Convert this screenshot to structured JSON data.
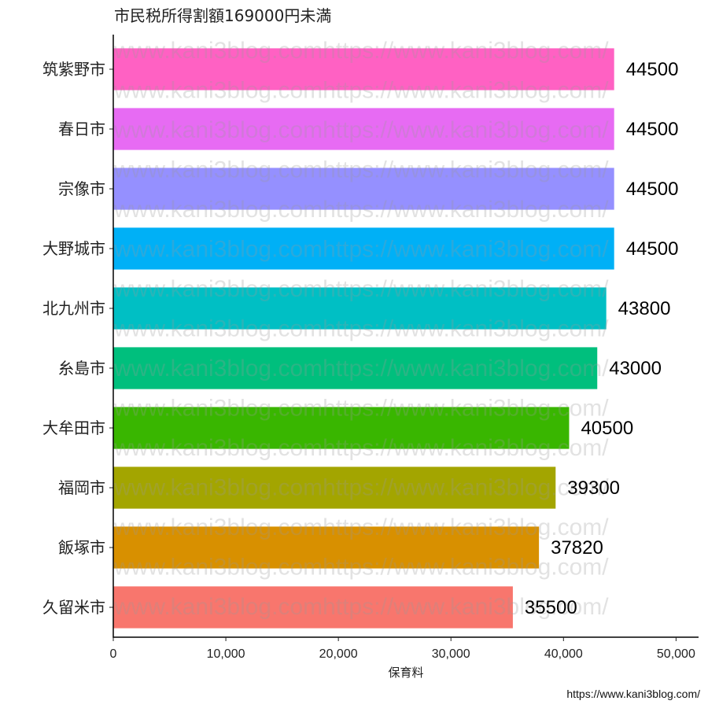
{
  "title": "市民税所得割額169000円未満",
  "caption": "https://www.kani3blog.com/",
  "watermark": "www.kani3blog.comhttps://www.kani3blog.com/",
  "chart_data": {
    "type": "bar",
    "orientation": "horizontal",
    "title": "市民税所得割額169000円未満",
    "xlabel": "保育料",
    "ylabel": "",
    "xlim": [
      0,
      52000
    ],
    "x_ticks": [
      0,
      10000,
      20000,
      30000,
      40000,
      50000
    ],
    "x_tick_labels": [
      "0",
      "10,000",
      "20,000",
      "30,000",
      "40,000",
      "50,000"
    ],
    "grid": false,
    "legend": "none",
    "categories": [
      "筑紫野市",
      "春日市",
      "宗像市",
      "大野城市",
      "北九州市",
      "糸島市",
      "大牟田市",
      "福岡市",
      "飯塚市",
      "久留米市"
    ],
    "values": [
      44500,
      44500,
      44500,
      44500,
      43800,
      43000,
      40500,
      39300,
      37820,
      35500
    ],
    "colors": [
      "#FF61C3",
      "#E76BF3",
      "#9590FF",
      "#00B0F6",
      "#00BFC4",
      "#00BF7D",
      "#39B600",
      "#A3A500",
      "#D89000",
      "#F8766D"
    ]
  }
}
